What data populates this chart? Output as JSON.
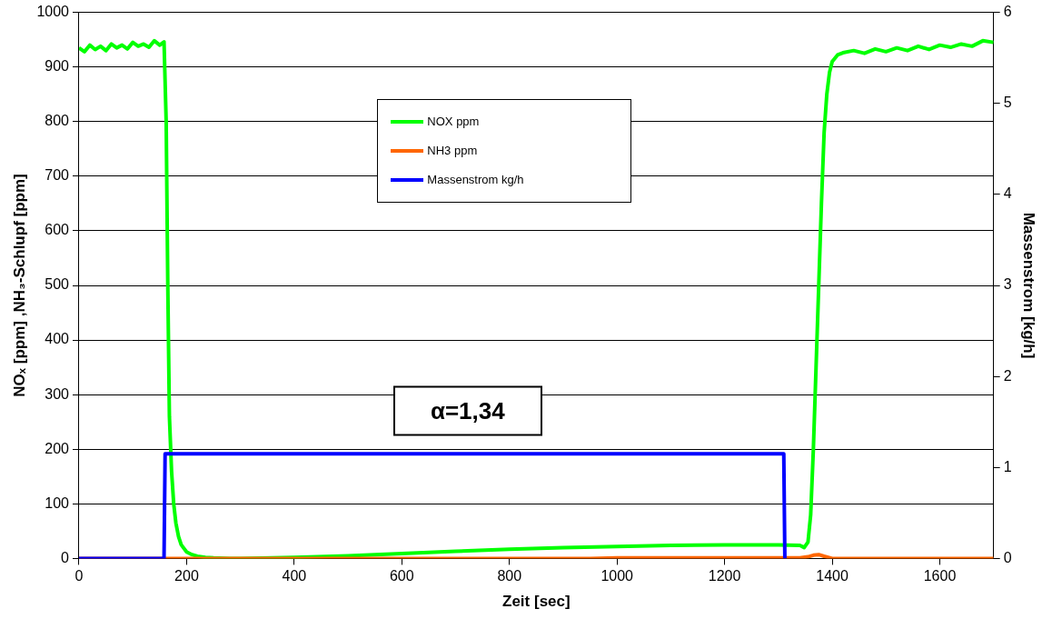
{
  "chart_data": {
    "type": "line",
    "xlabel": "Zeit [sec]",
    "ylabel": "NOₓ [ppm] ,NH₃-Schlupf [ppm]",
    "y2label": "Massenstrom [kg/h]",
    "xlim": [
      0,
      1700
    ],
    "xticks": [
      0,
      200,
      400,
      600,
      800,
      1000,
      1200,
      1400,
      1600
    ],
    "ylim": [
      0,
      1000
    ],
    "yticks": [
      0,
      100,
      200,
      300,
      400,
      500,
      600,
      700,
      800,
      900,
      1000
    ],
    "y2lim": [
      0,
      6
    ],
    "y2ticks": [
      0,
      1,
      2,
      3,
      4,
      5,
      6
    ],
    "grid": "y",
    "legend": "top",
    "marker": "none",
    "line_style": "solid",
    "annotations": [
      "α=1,34"
    ],
    "series": [
      {
        "name": "NOX ppm",
        "color": "#00ff00",
        "x": [
          0,
          10,
          20,
          30,
          40,
          50,
          60,
          70,
          80,
          90,
          100,
          110,
          120,
          130,
          140,
          150,
          158,
          162,
          165,
          168,
          172,
          176,
          180,
          185,
          190,
          200,
          210,
          220,
          235,
          250,
          280,
          300,
          400,
          500,
          600,
          700,
          800,
          900,
          1000,
          1100,
          1200,
          1300,
          1340,
          1348,
          1355,
          1360,
          1365,
          1370,
          1375,
          1380,
          1385,
          1390,
          1395,
          1400,
          1410,
          1420,
          1440,
          1460,
          1480,
          1500,
          1520,
          1540,
          1560,
          1580,
          1600,
          1620,
          1640,
          1660,
          1680,
          1700
        ],
        "values": [
          935,
          928,
          940,
          932,
          938,
          930,
          942,
          935,
          940,
          933,
          945,
          938,
          942,
          936,
          948,
          940,
          946,
          800,
          500,
          260,
          160,
          100,
          65,
          40,
          25,
          12,
          7,
          4,
          2,
          1,
          0,
          0,
          2,
          5,
          9,
          13,
          17,
          20,
          22,
          24,
          25,
          25,
          24,
          20,
          30,
          80,
          200,
          350,
          500,
          650,
          780,
          850,
          890,
          910,
          922,
          926,
          930,
          925,
          933,
          928,
          935,
          930,
          938,
          932,
          940,
          936,
          942,
          938,
          948,
          945
        ]
      },
      {
        "name": "NH3 ppm",
        "color": "#ff6600",
        "x": [
          0,
          950,
          1000,
          1200,
          1340,
          1355,
          1365,
          1375,
          1385,
          1400,
          1700
        ],
        "values": [
          0,
          0,
          1,
          1,
          1,
          3,
          6,
          7,
          4,
          0,
          0
        ]
      },
      {
        "name": "Massenstrom kg/h",
        "color": "#0000ff",
        "axis": "y2",
        "x": [
          0,
          158,
          160,
          1310,
          1312
        ],
        "values": [
          0,
          0,
          1.15,
          1.15,
          0
        ]
      }
    ]
  }
}
